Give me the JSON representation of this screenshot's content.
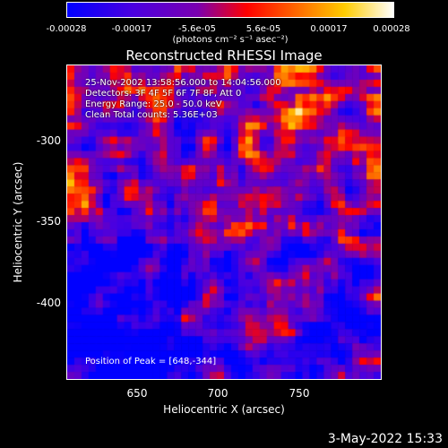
{
  "colorbar": {
    "ticks": [
      "-0.00028",
      "-0.00017",
      "-5.6e-05",
      "5.6e-05",
      "0.00017",
      "0.00028"
    ],
    "unit": "(photons cm⁻² s⁻¹ asec⁻²)"
  },
  "chart_data": {
    "type": "heatmap",
    "title": "Reconstructed RHESSI Image",
    "xlabel": "Heliocentric X (arcsec)",
    "ylabel": "Heliocentric Y (arcsec)",
    "xlim": [
      610,
      795
    ],
    "ylim": [
      -450,
      -265
    ],
    "xticks": [
      "650",
      "700",
      "750"
    ],
    "yticks": [
      "-300",
      "-350",
      "-400"
    ],
    "colorscale_range": [
      -0.00028,
      0.00028
    ],
    "annotations": [
      "25-Nov-2002 13:58:56.000 to 14:04:56.000",
      "Detectors: 3F 4F 5F 6F 7F 8F, Att 0",
      "Energy Range: 25.0 - 50.0 keV",
      "Clean    Total counts: 5.36E+03"
    ],
    "peak_label": "Position of Peak = [648,-344]",
    "peak_position": [
      648,
      -344
    ]
  },
  "timestamp": "3-May-2022 15:33"
}
